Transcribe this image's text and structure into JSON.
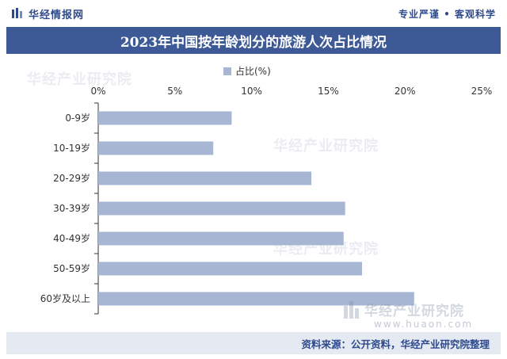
{
  "header": {
    "brand_name": "华经情报网",
    "slogan": "专业严谨 • 客观科学"
  },
  "chart_data": {
    "type": "bar",
    "orientation": "horizontal",
    "title": "2023年中国按年龄划分的旅游人次占比情况",
    "categories": [
      "0-9岁",
      "10-19岁",
      "20-29岁",
      "30-39岁",
      "40-49岁",
      "50-59岁",
      "60岁及以上"
    ],
    "series": [
      {
        "name": "占比(%)",
        "values": [
          8.7,
          7.5,
          13.9,
          16.1,
          16.0,
          17.2,
          20.6
        ],
        "color": "#a7b6d3"
      }
    ],
    "xlim": [
      0,
      25
    ],
    "xticks": [
      0,
      5,
      10,
      15,
      20,
      25
    ],
    "tick_labels": [
      "0%",
      "5%",
      "10%",
      "15%",
      "20%",
      "25%"
    ],
    "axis_position": "top",
    "legend_position": "top",
    "grid": false
  },
  "watermark": {
    "text": "华经产业研究院",
    "url": "www.huaon.com"
  },
  "footer": {
    "source": "资料来源：公开资料，华经产业研究院整理"
  }
}
